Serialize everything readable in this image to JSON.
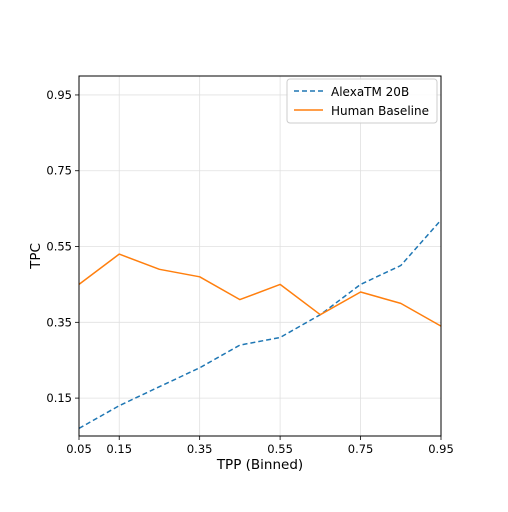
{
  "chart_data": {
    "type": "line",
    "title": "",
    "xlabel": "TPP (Binned)",
    "ylabel": "TPC",
    "xlim": [
      0.05,
      0.95
    ],
    "ylim": [
      0.05,
      1.0
    ],
    "xticks": [
      0.05,
      0.15,
      0.35,
      0.55,
      0.75,
      0.95
    ],
    "xtick_labels": [
      "0.05",
      "0.15",
      "0.35",
      "0.55",
      "0.75",
      "0.95"
    ],
    "yticks": [
      0.15,
      0.35,
      0.55,
      0.75,
      0.95
    ],
    "ytick_labels": [
      "0.15",
      "0.35",
      "0.55",
      "0.75",
      "0.95"
    ],
    "grid": true,
    "legend_position": "upper-right",
    "x": [
      0.05,
      0.15,
      0.25,
      0.35,
      0.45,
      0.55,
      0.65,
      0.75,
      0.85,
      0.95
    ],
    "series": [
      {
        "name": "AlexaTM 20B",
        "color": "#1f77b4",
        "style": "dashed",
        "values": [
          0.07,
          0.13,
          0.18,
          0.23,
          0.29,
          0.31,
          0.37,
          0.45,
          0.5,
          0.62
        ]
      },
      {
        "name": "Human Baseline",
        "color": "#ff7f0e",
        "style": "solid",
        "values": [
          0.45,
          0.53,
          0.49,
          0.47,
          0.41,
          0.45,
          0.37,
          0.43,
          0.4,
          0.34
        ]
      }
    ]
  }
}
